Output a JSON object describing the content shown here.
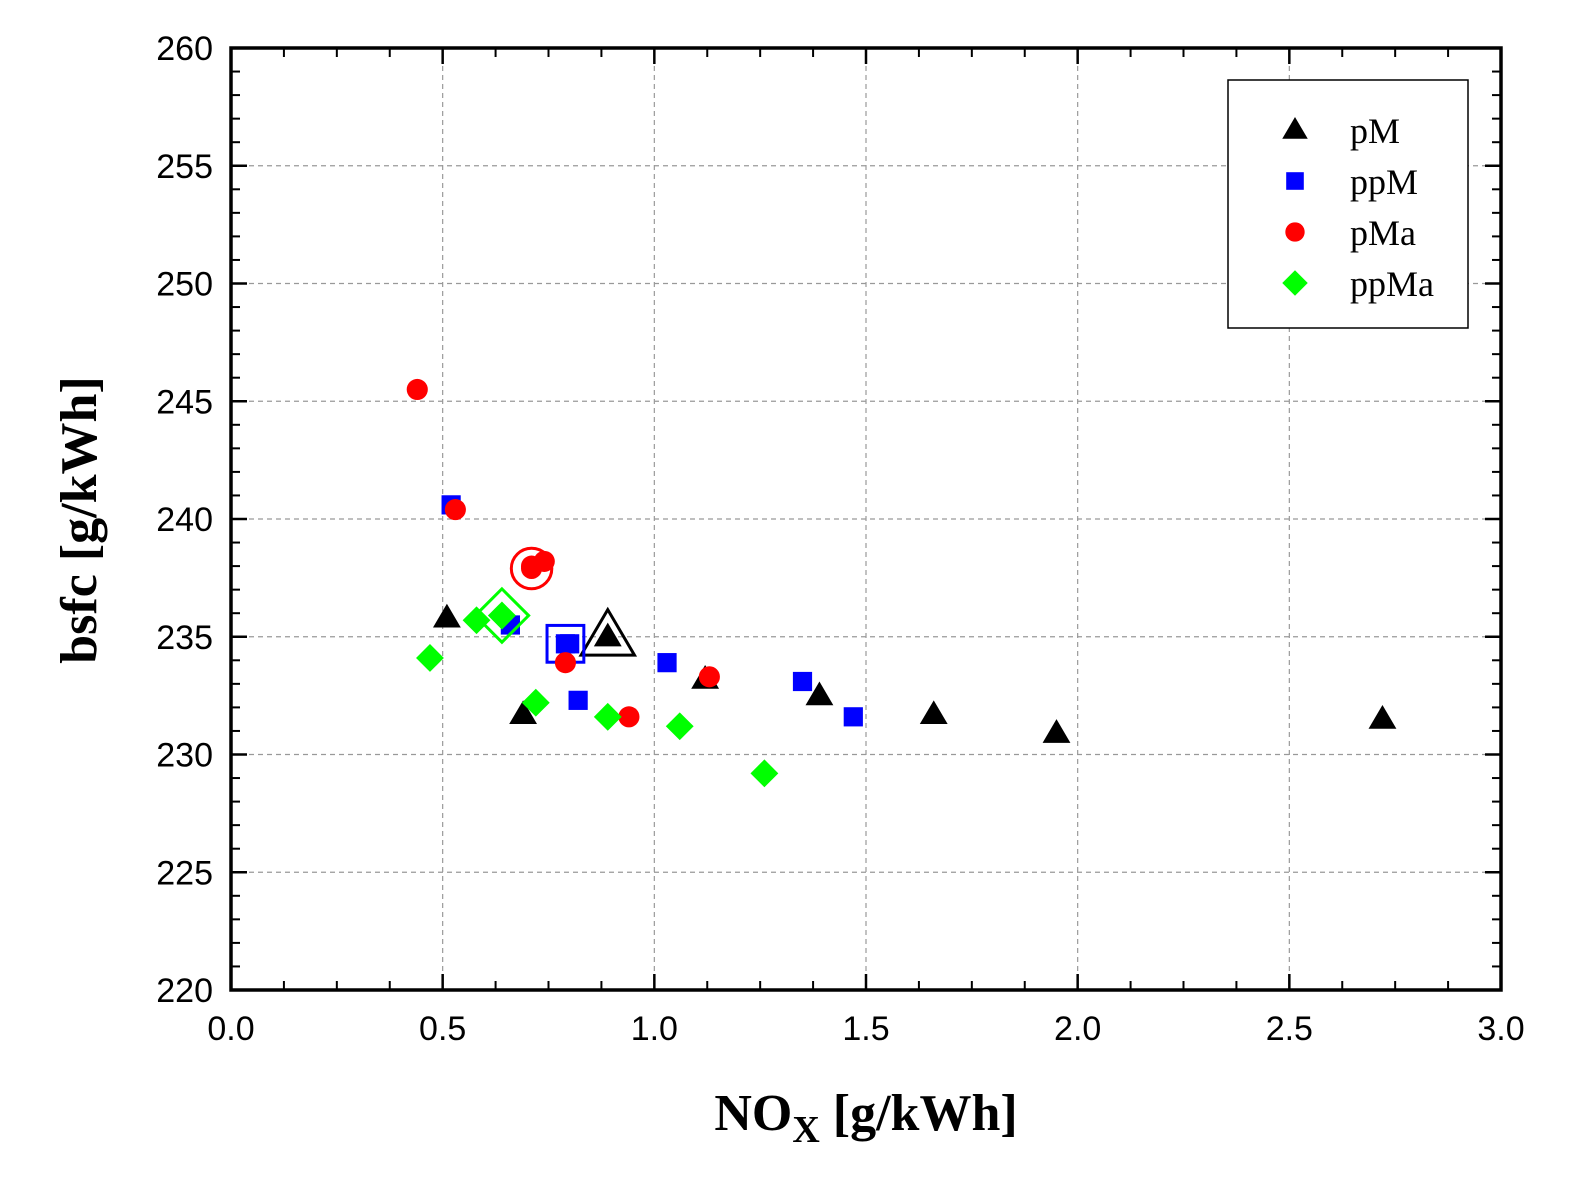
{
  "chart_data": {
    "type": "scatter",
    "title": "",
    "xlabel": {
      "main": "NO",
      "sub": "X",
      "units": " [g/kWh]"
    },
    "ylabel": "bsfc [g/kWh]",
    "xlim": [
      0.0,
      3.0
    ],
    "ylim": [
      220,
      260
    ],
    "x_ticks": [
      "0.0",
      "0.5",
      "1.0",
      "1.5",
      "2.0",
      "2.5",
      "3.0"
    ],
    "y_ticks": [
      "220",
      "225",
      "230",
      "235",
      "240",
      "245",
      "250",
      "255",
      "260"
    ],
    "grid": true,
    "legend_position": "top-right",
    "series": [
      {
        "name": "pM",
        "marker": "triangle",
        "color": "#000000",
        "points": [
          [
            0.51,
            235.8
          ],
          [
            0.69,
            231.7
          ],
          [
            1.12,
            233.2
          ],
          [
            1.39,
            232.5
          ],
          [
            1.66,
            231.7
          ],
          [
            1.95,
            230.9
          ],
          [
            2.72,
            231.5
          ]
        ],
        "highlight": [
          0.89,
          235.0
        ]
      },
      {
        "name": "ppM",
        "marker": "square",
        "color": "#0000ff",
        "points": [
          [
            0.52,
            240.6
          ],
          [
            0.66,
            235.5
          ],
          [
            0.8,
            234.7
          ],
          [
            0.82,
            232.3
          ],
          [
            1.03,
            233.9
          ],
          [
            1.35,
            233.1
          ],
          [
            1.47,
            231.6
          ]
        ],
        "highlight": [
          0.79,
          234.7
        ]
      },
      {
        "name": "pMa",
        "marker": "circle",
        "color": "#ff0000",
        "points": [
          [
            0.44,
            245.5
          ],
          [
            0.53,
            240.4
          ],
          [
            0.71,
            238.0
          ],
          [
            0.74,
            238.2
          ],
          [
            0.79,
            233.9
          ],
          [
            0.94,
            231.6
          ],
          [
            1.13,
            233.3
          ]
        ],
        "highlight": [
          0.71,
          237.9
        ]
      },
      {
        "name": "ppMa",
        "marker": "diamond",
        "color": "#00ff00",
        "points": [
          [
            0.47,
            234.1
          ],
          [
            0.58,
            235.7
          ],
          [
            0.64,
            235.9
          ],
          [
            0.72,
            232.2
          ],
          [
            0.89,
            231.6
          ],
          [
            1.06,
            231.2
          ],
          [
            1.26,
            229.2
          ]
        ],
        "highlight": [
          0.64,
          235.9
        ]
      }
    ]
  }
}
